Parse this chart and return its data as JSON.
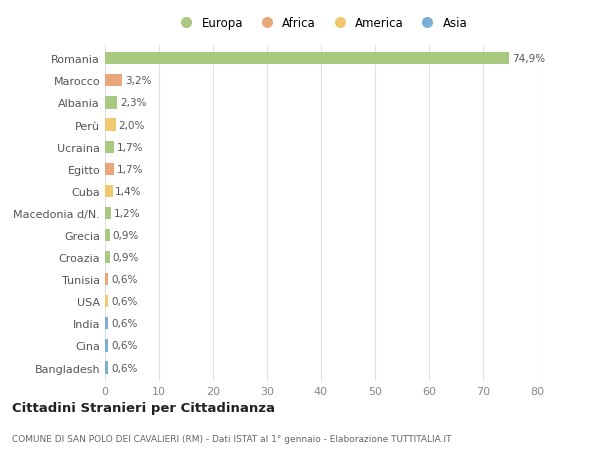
{
  "categories": [
    "Romania",
    "Marocco",
    "Albania",
    "Perù",
    "Ucraina",
    "Egitto",
    "Cuba",
    "Macedonia d/N.",
    "Grecia",
    "Croazia",
    "Tunisia",
    "USA",
    "India",
    "Cina",
    "Bangladesh"
  ],
  "values": [
    74.9,
    3.2,
    2.3,
    2.0,
    1.7,
    1.7,
    1.4,
    1.2,
    0.9,
    0.9,
    0.6,
    0.6,
    0.6,
    0.6,
    0.6
  ],
  "labels": [
    "74,9%",
    "3,2%",
    "2,3%",
    "2,0%",
    "1,7%",
    "1,7%",
    "1,4%",
    "1,2%",
    "0,9%",
    "0,9%",
    "0,6%",
    "0,6%",
    "0,6%",
    "0,6%",
    "0,6%"
  ],
  "continent": [
    "Europa",
    "Africa",
    "Europa",
    "America",
    "Europa",
    "Africa",
    "America",
    "Europa",
    "Europa",
    "Europa",
    "Africa",
    "America",
    "Asia",
    "Asia",
    "Asia"
  ],
  "colors": {
    "Europa": "#a8c97f",
    "Africa": "#e8a87c",
    "America": "#f0c870",
    "Asia": "#7bafd4"
  },
  "xlim": [
    0,
    80
  ],
  "xticks": [
    0,
    10,
    20,
    30,
    40,
    50,
    60,
    70,
    80
  ],
  "title": "Cittadini Stranieri per Cittadinanza",
  "subtitle": "COMUNE DI SAN POLO DEI CAVALIERI (RM) - Dati ISTAT al 1° gennaio - Elaborazione TUTTITALIA.IT",
  "background_color": "#ffffff",
  "grid_color": "#e0e0e0",
  "bar_height": 0.55,
  "legend_order": [
    "Europa",
    "Africa",
    "America",
    "Asia"
  ]
}
